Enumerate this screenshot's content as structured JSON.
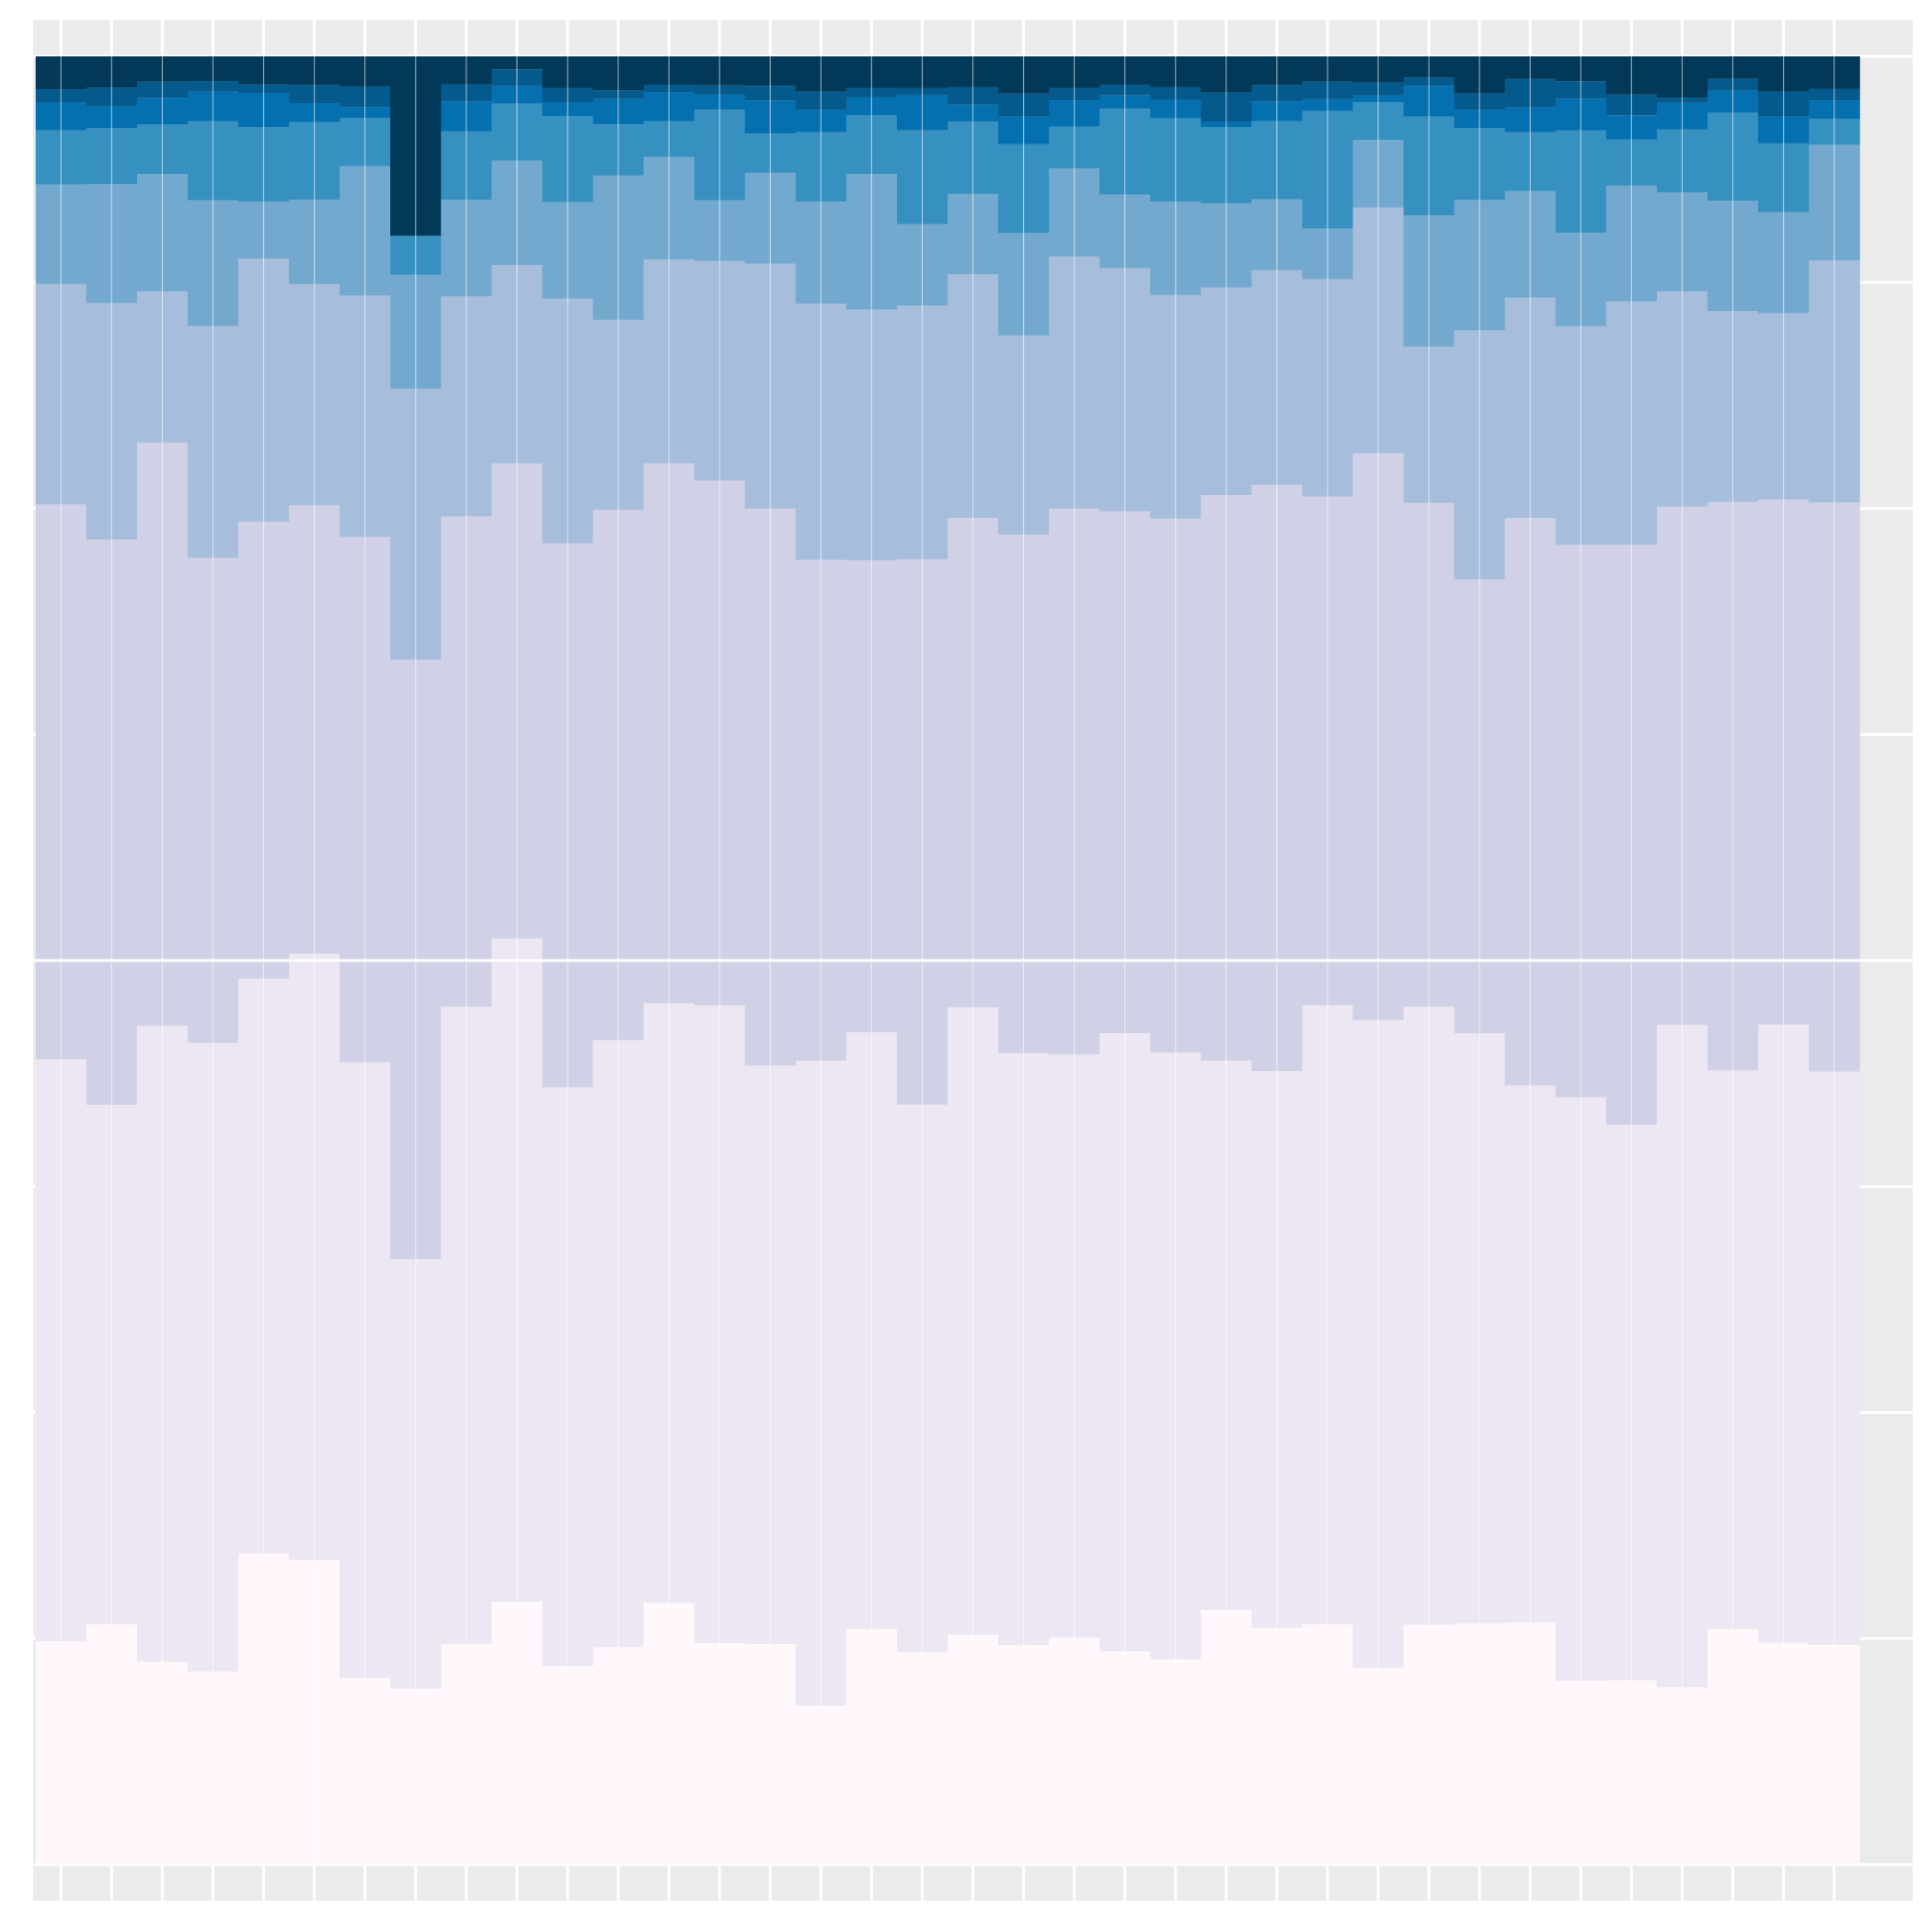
{
  "chart_data": {
    "type": "bar",
    "stacked": true,
    "normalized": true,
    "grid": true,
    "legend": "none",
    "xlim": [
      -0.55,
      36.55
    ],
    "ylim": [
      -0.02,
      1.02
    ],
    "x": [
      0,
      1,
      2,
      3,
      4,
      5,
      6,
      7,
      8,
      9,
      10,
      11,
      12,
      13,
      14,
      15,
      16,
      17,
      18,
      19,
      20,
      21,
      22,
      23,
      24,
      25,
      26,
      27,
      28,
      29,
      30,
      31,
      32,
      33,
      34,
      35
    ],
    "colors": [
      "#fff7fb",
      "#ece7f2",
      "#d0d1e6",
      "#a6bddb",
      "#74a9cf",
      "#3690c0",
      "#0570b0",
      "#045a8d",
      "#023858"
    ],
    "boundaries": [
      [
        0.1235,
        0.133,
        0.1122,
        0.1068,
        0.1721,
        0.1685,
        0.1033,
        0.0972,
        0.1221,
        0.1454,
        0.1097,
        0.1203,
        0.1446,
        0.1225,
        0.122,
        0.0879,
        0.1303,
        0.1174,
        0.1271,
        0.1213,
        0.1256,
        0.1179,
        0.1136,
        0.1408,
        0.1309,
        0.133,
        0.1089,
        0.1327,
        0.1335,
        0.1339,
        0.1017,
        0.102,
        0.098,
        0.1303,
        0.1228,
        0.1216
      ],
      [
        0.4454,
        0.4202,
        0.4639,
        0.4544,
        0.49,
        0.5038,
        0.4437,
        0.3349,
        0.4745,
        0.5122,
        0.4299,
        0.456,
        0.4764,
        0.4752,
        0.4419,
        0.4446,
        0.4603,
        0.4203,
        0.4741,
        0.4488,
        0.448,
        0.4598,
        0.4492,
        0.4447,
        0.4389,
        0.4753,
        0.467,
        0.4745,
        0.4597,
        0.4309,
        0.4244,
        0.4092,
        0.4645,
        0.4393,
        0.4646,
        0.4386
      ],
      [
        0.7522,
        0.7327,
        0.7865,
        0.7227,
        0.7426,
        0.7517,
        0.7342,
        0.6663,
        0.7456,
        0.7749,
        0.7307,
        0.7493,
        0.775,
        0.7654,
        0.7499,
        0.7216,
        0.7213,
        0.7219,
        0.7448,
        0.7356,
        0.7499,
        0.7484,
        0.7444,
        0.7574,
        0.7631,
        0.7566,
        0.7806,
        0.753,
        0.7108,
        0.7447,
        0.7299,
        0.73,
        0.7511,
        0.7536,
        0.7549,
        0.7533
      ],
      [
        0.8741,
        0.8636,
        0.87,
        0.8509,
        0.8881,
        0.874,
        0.8677,
        0.8162,
        0.8672,
        0.8846,
        0.866,
        0.8542,
        0.8876,
        0.8869,
        0.8854,
        0.8633,
        0.8599,
        0.8621,
        0.8795,
        0.8457,
        0.8893,
        0.8829,
        0.868,
        0.8722,
        0.8817,
        0.8768,
        0.9164,
        0.8395,
        0.8485,
        0.8665,
        0.8508,
        0.8644,
        0.87,
        0.8592,
        0.858,
        0.8871
      ],
      [
        0.9292,
        0.9294,
        0.9349,
        0.9204,
        0.9197,
        0.9208,
        0.9393,
        0.8792,
        0.9207,
        0.9423,
        0.9195,
        0.9341,
        0.9443,
        0.9205,
        0.9356,
        0.9196,
        0.9349,
        0.9073,
        0.9239,
        0.9023,
        0.9381,
        0.9236,
        0.9197,
        0.9188,
        0.9209,
        0.9048,
        0.9538,
        0.912,
        0.9206,
        0.9256,
        0.9025,
        0.9285,
        0.9247,
        0.9201,
        0.9138,
        0.9511
      ],
      [
        0.9591,
        0.9603,
        0.9625,
        0.9641,
        0.9608,
        0.9636,
        0.9659,
        0.9008,
        0.9585,
        0.9739,
        0.9671,
        0.9624,
        0.9641,
        0.9705,
        0.9573,
        0.9582,
        0.9674,
        0.9591,
        0.964,
        0.9514,
        0.9611,
        0.9711,
        0.9657,
        0.9608,
        0.9643,
        0.9699,
        0.9747,
        0.9667,
        0.9603,
        0.9581,
        0.959,
        0.954,
        0.9597,
        0.9689,
        0.9519,
        0.9654
      ],
      [
        0.9745,
        0.9723,
        0.9771,
        0.9804,
        0.9798,
        0.9742,
        0.972,
        0.9008,
        0.9751,
        0.9835,
        0.9747,
        0.9764,
        0.9803,
        0.979,
        0.9756,
        0.9703,
        0.9773,
        0.9788,
        0.9733,
        0.9667,
        0.9757,
        0.9787,
        0.976,
        0.9638,
        0.9751,
        0.9763,
        0.9785,
        0.9837,
        0.9703,
        0.9718,
        0.9766,
        0.9675,
        0.9743,
        0.981,
        0.9667,
        0.9757
      ],
      [
        0.9818,
        0.9827,
        0.986,
        0.9864,
        0.9845,
        0.9842,
        0.9834,
        0.9008,
        0.9846,
        0.9929,
        0.9826,
        0.9812,
        0.9844,
        0.984,
        0.9838,
        0.9804,
        0.9826,
        0.9826,
        0.9831,
        0.9794,
        0.9824,
        0.9844,
        0.9831,
        0.9799,
        0.9842,
        0.9861,
        0.9856,
        0.9883,
        0.9796,
        0.9875,
        0.9863,
        0.9789,
        0.9772,
        0.9876,
        0.9806,
        0.9821
      ],
      [
        1,
        1,
        1,
        1,
        1,
        1,
        1,
        1,
        1,
        1,
        1,
        1,
        1,
        1,
        1,
        1,
        1,
        1,
        1,
        1,
        1,
        1,
        1,
        1,
        1,
        1,
        1,
        1,
        1,
        1,
        1,
        1,
        1,
        1,
        1,
        1
      ]
    ]
  }
}
